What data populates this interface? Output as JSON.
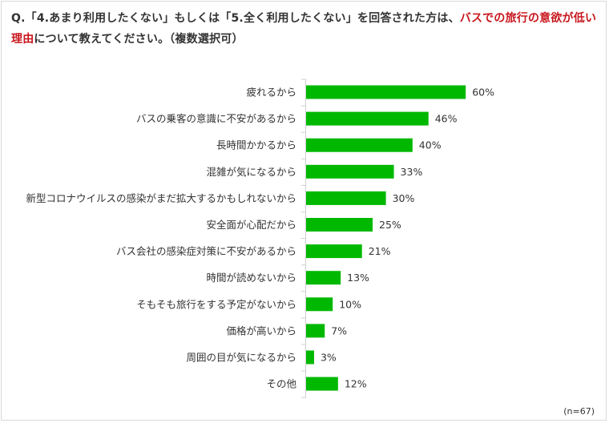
{
  "title": {
    "part1": "Q.「4.あまり利用したくない」もしくは「5.全く利用したくない」を回答された方は、",
    "highlight1": "バスでの旅行の意欲が低い理由",
    "part2": "について教えてください。（複数選択可）"
  },
  "note": "(n=67)",
  "chart_data": {
    "type": "bar",
    "orientation": "horizontal",
    "title": "Q.「4.あまり利用したくない」もしくは「5.全く利用したくない」を回答された方は、バスでの旅行の意欲が低い理由について教えてください。（複数選択可）",
    "categories": [
      "疲れるから",
      "バスの乗客の意識に不安があるから",
      "長時間かかるから",
      "混雑が気になるから",
      "新型コロナウイルスの感染がまだ拡大するかもしれないから",
      "安全面が心配だから",
      "バス会社の感染症対策に不安があるから",
      "時間が読めないから",
      "そもそも旅行をする予定がないから",
      "価格が高いから",
      "周囲の目が気になるから",
      "その他"
    ],
    "values": [
      60,
      46,
      40,
      33,
      30,
      25,
      21,
      13,
      10,
      7,
      3,
      12
    ],
    "value_labels": [
      "60%",
      "46%",
      "40%",
      "33%",
      "30%",
      "25%",
      "21%",
      "13%",
      "10%",
      "7%",
      "3%",
      "12%"
    ],
    "unit": "%",
    "xlim": [
      0,
      100
    ],
    "grid": false,
    "legend": "none",
    "colors": {
      "bar": "#00b800",
      "highlight_text": "#c8161d"
    }
  }
}
